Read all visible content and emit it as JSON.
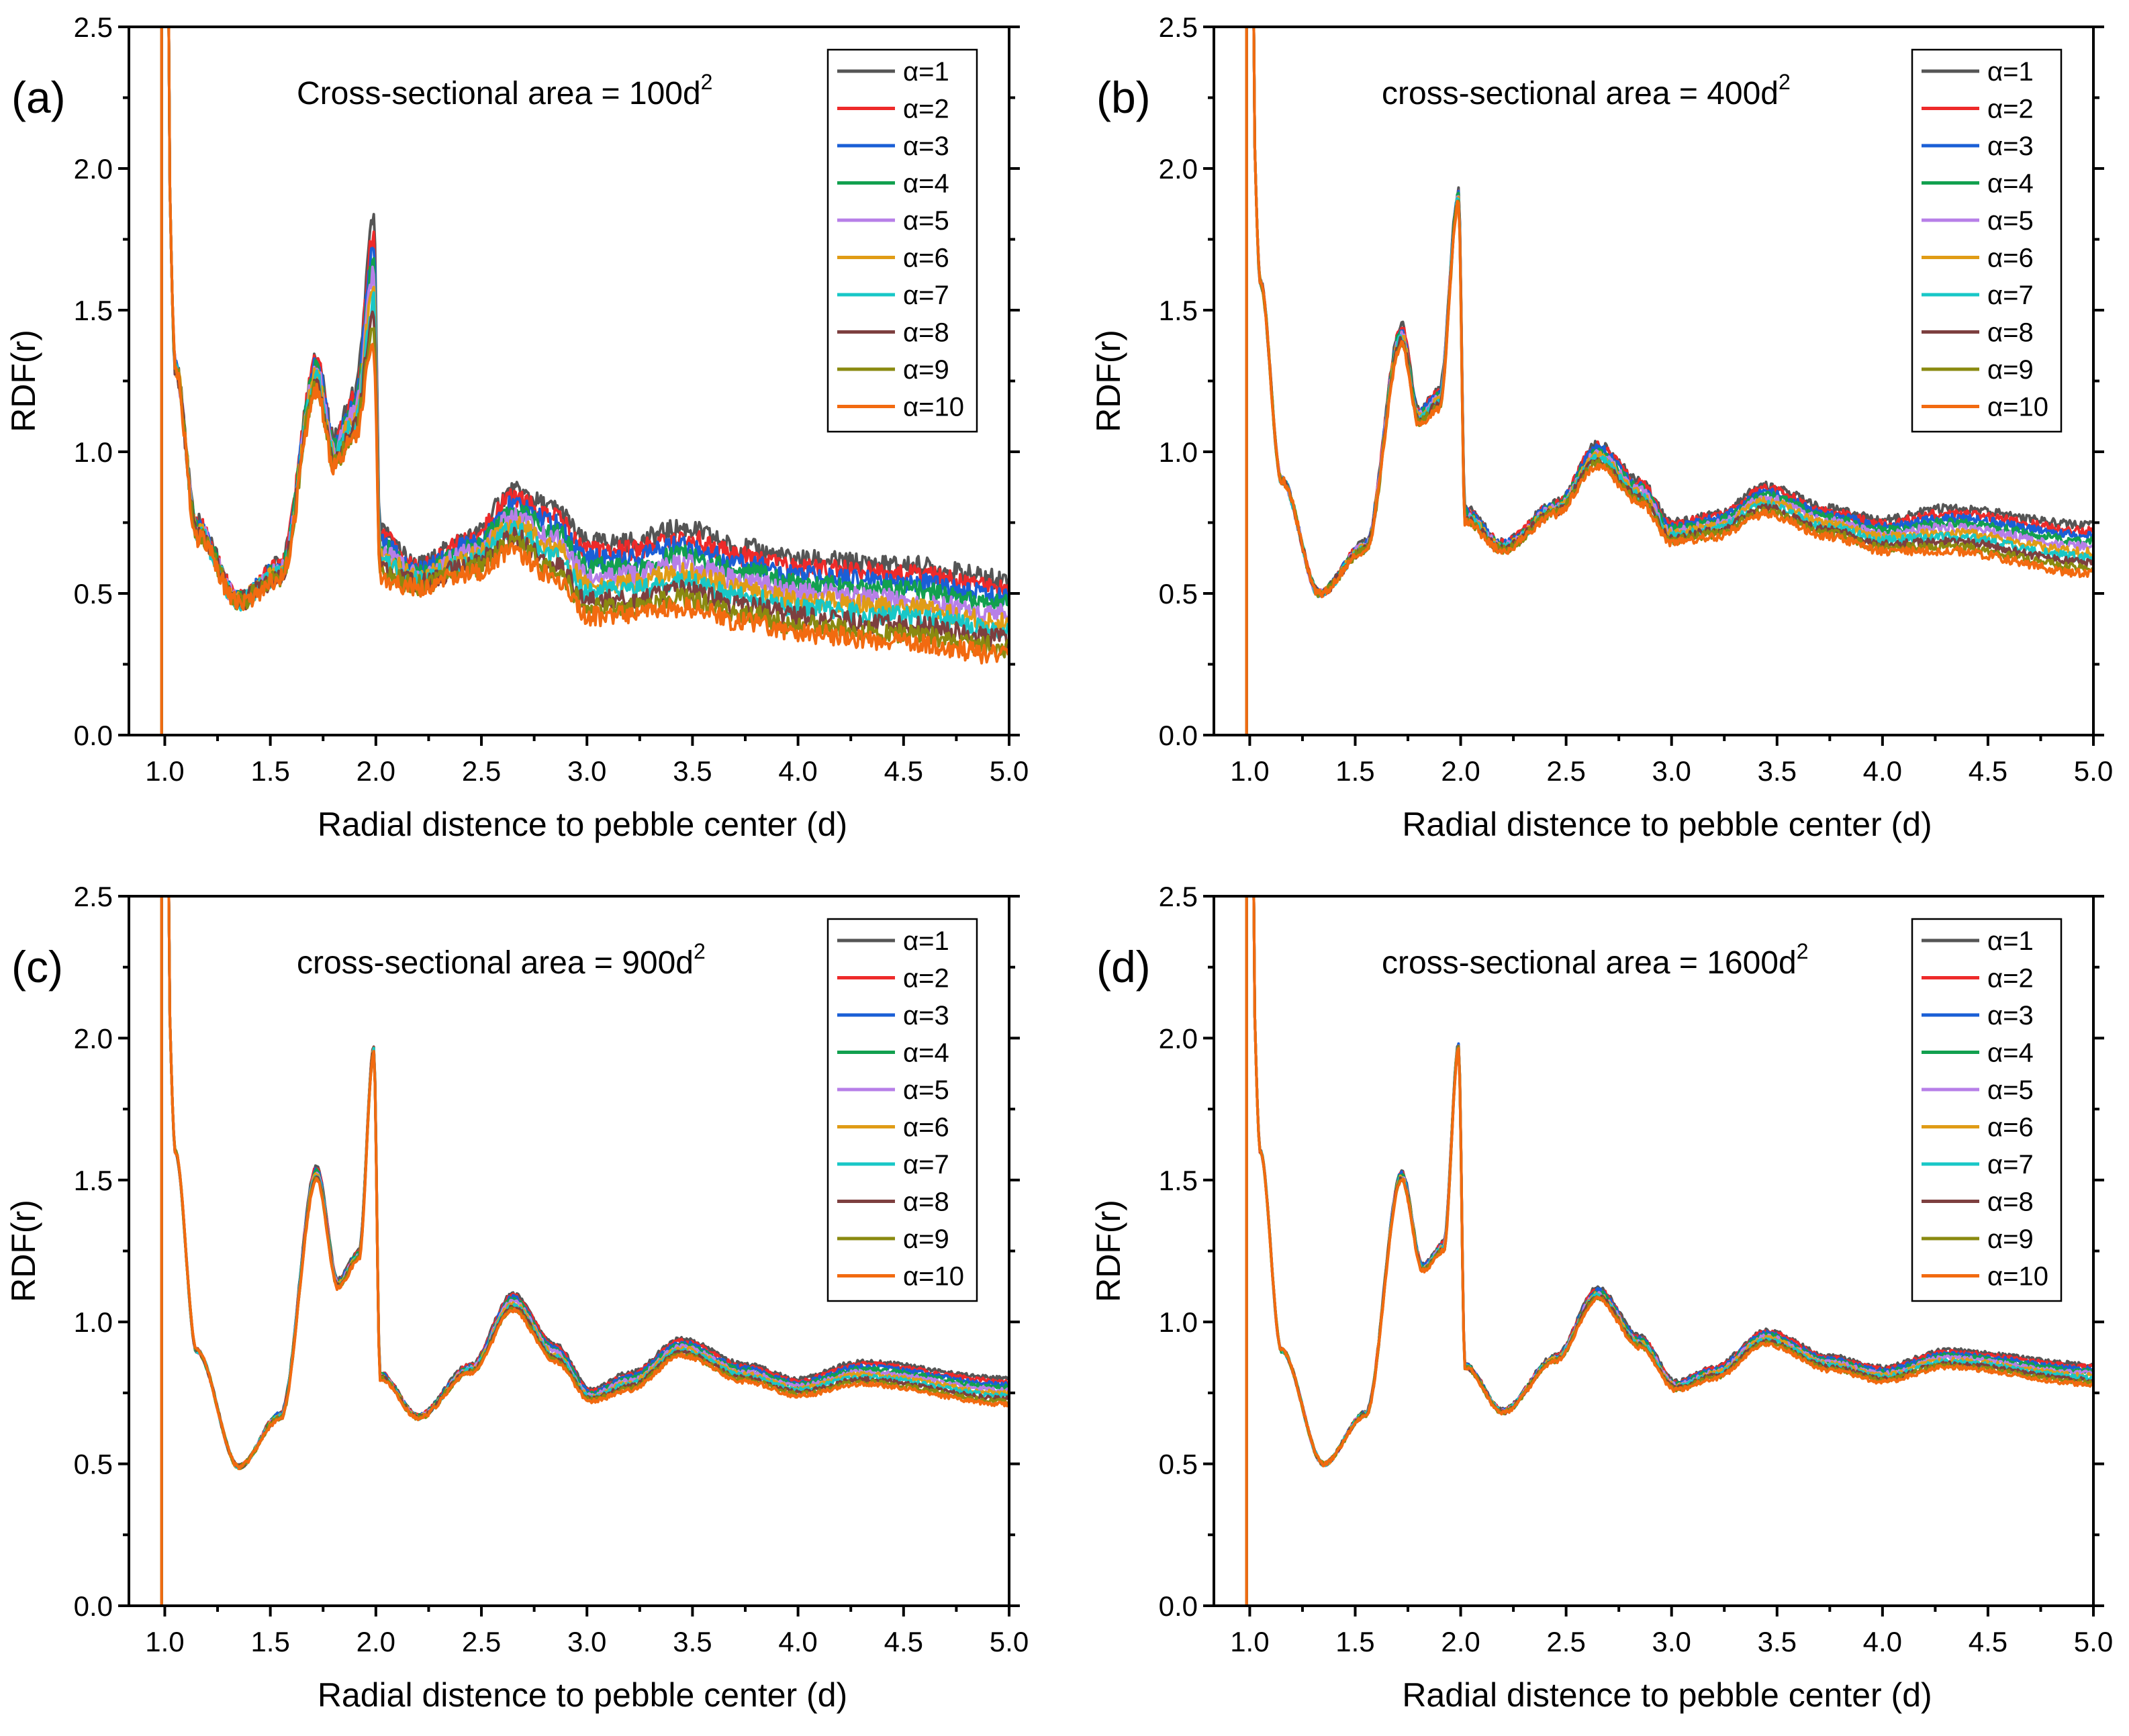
{
  "chart_data": [
    {
      "type": "line",
      "panel_label": "(a)",
      "title": "Cross-sectional area = 100d",
      "title_sup": "2",
      "xlabel": "Radial distence to pebble center (d)",
      "ylabel": "RDF(r)",
      "xlim": [
        0.83,
        5.0
      ],
      "ylim": [
        0.0,
        2.5
      ],
      "xticks": [
        "1.0",
        "1.5",
        "2.0",
        "2.5",
        "3.0",
        "3.5",
        "4.0",
        "4.5",
        "5.0"
      ],
      "yticks": [
        "0.0",
        "0.5",
        "1.0",
        "1.5",
        "2.0",
        "2.5"
      ],
      "legend_position": "top-right",
      "key_points": {
        "x": [
          1.0,
          1.05,
          1.15,
          1.35,
          1.55,
          1.72,
          1.8,
          1.9,
          1.99,
          2.02,
          2.2,
          2.45,
          2.65,
          2.85,
          3.0,
          3.2,
          3.45,
          3.75,
          4.0,
          4.5,
          5.0
        ],
        "alpha1": [
          2.5,
          1.3,
          0.75,
          0.48,
          0.6,
          1.33,
          1.05,
          1.2,
          1.82,
          0.72,
          0.6,
          0.7,
          0.86,
          0.8,
          0.68,
          0.68,
          0.73,
          0.66,
          0.62,
          0.6,
          0.55
        ],
        "alpha10": [
          2.5,
          1.3,
          0.7,
          0.47,
          0.55,
          1.22,
          0.95,
          1.05,
          1.38,
          0.55,
          0.52,
          0.57,
          0.65,
          0.55,
          0.42,
          0.42,
          0.45,
          0.4,
          0.36,
          0.33,
          0.28
        ]
      }
    },
    {
      "type": "line",
      "panel_label": "(b)",
      "title": "cross-sectional area = 400d",
      "title_sup": "2",
      "xlabel": "Radial distence to pebble center (d)",
      "ylabel": "RDF(r)",
      "xlim": [
        0.83,
        5.0
      ],
      "ylim": [
        0.0,
        2.5
      ],
      "xticks": [
        "1.0",
        "1.5",
        "2.0",
        "2.5",
        "3.0",
        "3.5",
        "4.0",
        "4.5",
        "5.0"
      ],
      "yticks": [
        "0.0",
        "0.5",
        "1.0",
        "1.5",
        "2.0",
        "2.5"
      ],
      "legend_position": "top-right",
      "key_points": {
        "x": [
          1.0,
          1.05,
          1.15,
          1.33,
          1.55,
          1.72,
          1.8,
          1.9,
          1.99,
          2.02,
          2.2,
          2.45,
          2.65,
          2.85,
          3.0,
          3.2,
          3.45,
          3.75,
          4.0,
          4.3,
          5.0
        ],
        "alpha1": [
          2.5,
          1.6,
          0.9,
          0.5,
          0.68,
          1.45,
          1.15,
          1.22,
          1.92,
          0.8,
          0.68,
          0.82,
          1.03,
          0.9,
          0.75,
          0.78,
          0.88,
          0.8,
          0.76,
          0.8,
          0.74
        ],
        "alpha10": [
          2.5,
          1.6,
          0.9,
          0.5,
          0.65,
          1.38,
          1.1,
          1.15,
          1.88,
          0.75,
          0.65,
          0.78,
          0.95,
          0.82,
          0.68,
          0.7,
          0.78,
          0.7,
          0.65,
          0.65,
          0.57
        ]
      }
    },
    {
      "type": "line",
      "panel_label": "(c)",
      "title": "cross-sectional area = 900d",
      "title_sup": "2",
      "xlabel": "Radial distence to pebble center (d)",
      "ylabel": "RDF(r)",
      "xlim": [
        0.83,
        5.0
      ],
      "ylim": [
        0.0,
        2.5
      ],
      "xticks": [
        "1.0",
        "1.5",
        "2.0",
        "2.5",
        "3.0",
        "3.5",
        "4.0",
        "4.5",
        "5.0"
      ],
      "yticks": [
        "0.0",
        "0.5",
        "1.0",
        "1.5",
        "2.0",
        "2.5"
      ],
      "legend_position": "top-right",
      "key_points": {
        "x": [
          1.0,
          1.05,
          1.15,
          1.35,
          1.55,
          1.72,
          1.82,
          1.92,
          1.99,
          2.02,
          2.2,
          2.45,
          2.65,
          2.85,
          3.02,
          3.2,
          3.45,
          3.75,
          4.0,
          4.3,
          5.0
        ],
        "alpha1": [
          2.5,
          1.6,
          0.9,
          0.49,
          0.68,
          1.55,
          1.15,
          1.25,
          1.97,
          0.82,
          0.67,
          0.85,
          1.1,
          0.92,
          0.76,
          0.82,
          0.94,
          0.85,
          0.8,
          0.86,
          0.8
        ],
        "alpha10": [
          2.5,
          1.6,
          0.9,
          0.49,
          0.66,
          1.5,
          1.12,
          1.22,
          1.95,
          0.8,
          0.66,
          0.82,
          1.04,
          0.86,
          0.72,
          0.76,
          0.88,
          0.79,
          0.74,
          0.78,
          0.71
        ]
      }
    },
    {
      "type": "line",
      "panel_label": "(d)",
      "title": "cross-sectional area = 1600d",
      "title_sup": "2",
      "xlabel": "Radial distence to pebble center (d)",
      "ylabel": "RDF(r)",
      "xlim": [
        0.83,
        5.0
      ],
      "ylim": [
        0.0,
        2.5
      ],
      "xticks": [
        "1.0",
        "1.5",
        "2.0",
        "2.5",
        "3.0",
        "3.5",
        "4.0",
        "4.5",
        "5.0"
      ],
      "yticks": [
        "0.0",
        "0.5",
        "1.0",
        "1.5",
        "2.0",
        "2.5"
      ],
      "legend_position": "top-right",
      "key_points": {
        "x": [
          1.0,
          1.05,
          1.15,
          1.35,
          1.55,
          1.72,
          1.82,
          1.92,
          1.99,
          2.02,
          2.2,
          2.45,
          2.65,
          2.85,
          3.02,
          3.2,
          3.45,
          3.75,
          4.0,
          4.3,
          5.0
        ],
        "alpha1": [
          2.5,
          1.6,
          0.9,
          0.5,
          0.68,
          1.53,
          1.2,
          1.28,
          1.98,
          0.85,
          0.69,
          0.88,
          1.12,
          0.95,
          0.79,
          0.84,
          0.97,
          0.88,
          0.84,
          0.9,
          0.85
        ],
        "alpha10": [
          2.5,
          1.6,
          0.9,
          0.5,
          0.67,
          1.5,
          1.18,
          1.25,
          1.96,
          0.84,
          0.68,
          0.86,
          1.08,
          0.91,
          0.76,
          0.8,
          0.92,
          0.83,
          0.79,
          0.84,
          0.78
        ]
      }
    }
  ],
  "series": [
    {
      "name": "α=1",
      "color": "#555555"
    },
    {
      "name": "α=2",
      "color": "#ee2a2a"
    },
    {
      "name": "α=3",
      "color": "#1a5fd6"
    },
    {
      "name": "α=4",
      "color": "#12a04f"
    },
    {
      "name": "α=5",
      "color": "#b77fe8"
    },
    {
      "name": "α=6",
      "color": "#e09c16"
    },
    {
      "name": "α=7",
      "color": "#18c7c7"
    },
    {
      "name": "α=8",
      "color": "#7d3f3f"
    },
    {
      "name": "α=9",
      "color": "#8a8a10"
    },
    {
      "name": "α=10",
      "color": "#f26a10"
    }
  ]
}
